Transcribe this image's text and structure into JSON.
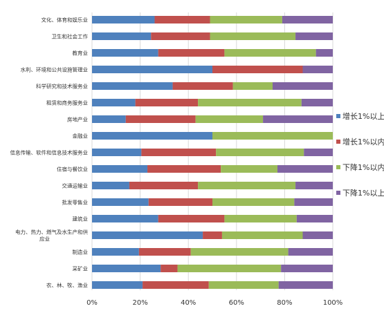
{
  "chart_data": {
    "type": "bar",
    "orientation": "horizontal",
    "stacked": "percent",
    "categories": [
      "文化、体育和娱乐业",
      "卫生和社会工作",
      "教育业",
      "水利、环境和公共设施管理业",
      "科学研究和技术服务业",
      "租赁和商务服务业",
      "房地产业",
      "金融业",
      "信息传输、软件和信息技术服务业",
      "住宿与餐饮业",
      "交通运输业",
      "批发零售业",
      "建筑业",
      "电力、热力、燃气及水生产和供应业",
      "制造业",
      "采矿业",
      "农、林、牧、渔业"
    ],
    "series": [
      {
        "name": "增长1%以上",
        "color": "#4F81BD",
        "values": [
          26,
          24.5,
          27.5,
          50,
          33.5,
          18,
          14,
          50,
          20.5,
          23,
          15.5,
          23.5,
          27.5,
          46,
          19.5,
          28.5,
          21
        ]
      },
      {
        "name": "增长1%以内",
        "color": "#C0504D",
        "values": [
          23,
          24.5,
          27.5,
          37.5,
          25,
          26,
          29,
          0,
          31,
          30.5,
          28.5,
          26.5,
          27.5,
          8,
          21.5,
          7,
          27.5
        ]
      },
      {
        "name": "下降1%以内",
        "color": "#9BBB59",
        "values": [
          30,
          35.5,
          38,
          0,
          16.5,
          43,
          28,
          50,
          36.5,
          23.5,
          40.5,
          34,
          30,
          33.5,
          40.5,
          43,
          29
        ]
      },
      {
        "name": "下降1%以上",
        "color": "#8064A2",
        "values": [
          21,
          15.5,
          7,
          12.5,
          25,
          13,
          29,
          0,
          12,
          23,
          15.5,
          16,
          15,
          12.5,
          18.5,
          21.5,
          22.5
        ]
      }
    ],
    "xlim": [
      0,
      100
    ],
    "xticks": [
      "0%",
      "20%",
      "40%",
      "60%",
      "80%",
      "100%"
    ],
    "grid": "vertical",
    "legend_position": "right"
  }
}
